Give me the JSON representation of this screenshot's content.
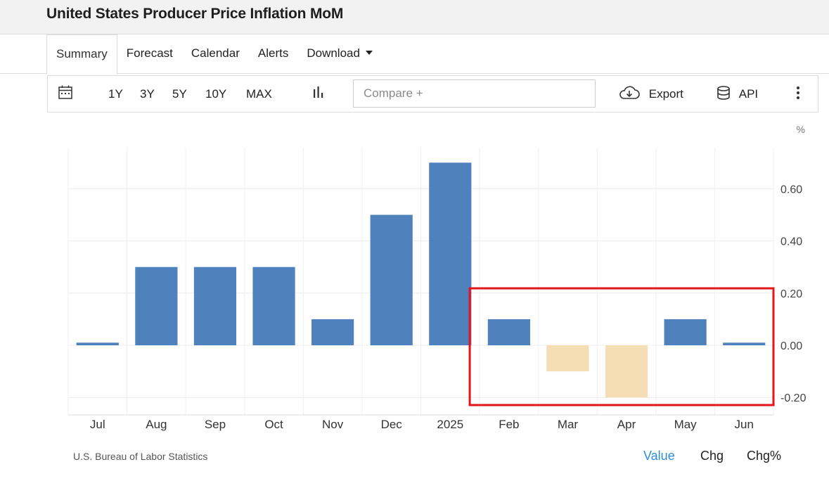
{
  "page": {
    "title": "United States Producer Price Inflation MoM"
  },
  "tabs": [
    "Summary",
    "Forecast",
    "Calendar",
    "Alerts",
    "Download"
  ],
  "toolbar": {
    "ranges": [
      "1Y",
      "3Y",
      "5Y",
      "10Y",
      "MAX"
    ],
    "compare_placeholder": "Compare +",
    "export_label": "Export",
    "api_label": "API"
  },
  "chart_data": {
    "type": "bar",
    "categories": [
      "Jul",
      "Aug",
      "Sep",
      "Oct",
      "Nov",
      "Dec",
      "2025",
      "Feb",
      "Mar",
      "Apr",
      "May",
      "Jun"
    ],
    "values": [
      0.01,
      0.3,
      0.3,
      0.3,
      0.1,
      0.5,
      0.7,
      0.1,
      -0.1,
      -0.2,
      0.1,
      0.01
    ],
    "unit": "%",
    "yticks": [
      "0.60",
      "0.40",
      "0.20",
      "0.00",
      "-0.20"
    ],
    "ylim": [
      -0.26,
      0.77
    ],
    "y_axis_side": "right",
    "colors": {
      "positive": "#4f81bd",
      "negative": "#f5deb3",
      "highlight": "#e3161d"
    },
    "highlight": {
      "from": "Feb",
      "to": "Jun"
    }
  },
  "footer": {
    "source": "U.S. Bureau of Labor Statistics",
    "value_toggles": [
      "Value",
      "Chg",
      "Chg%"
    ],
    "active_toggle_color": "#2d8cdb"
  }
}
